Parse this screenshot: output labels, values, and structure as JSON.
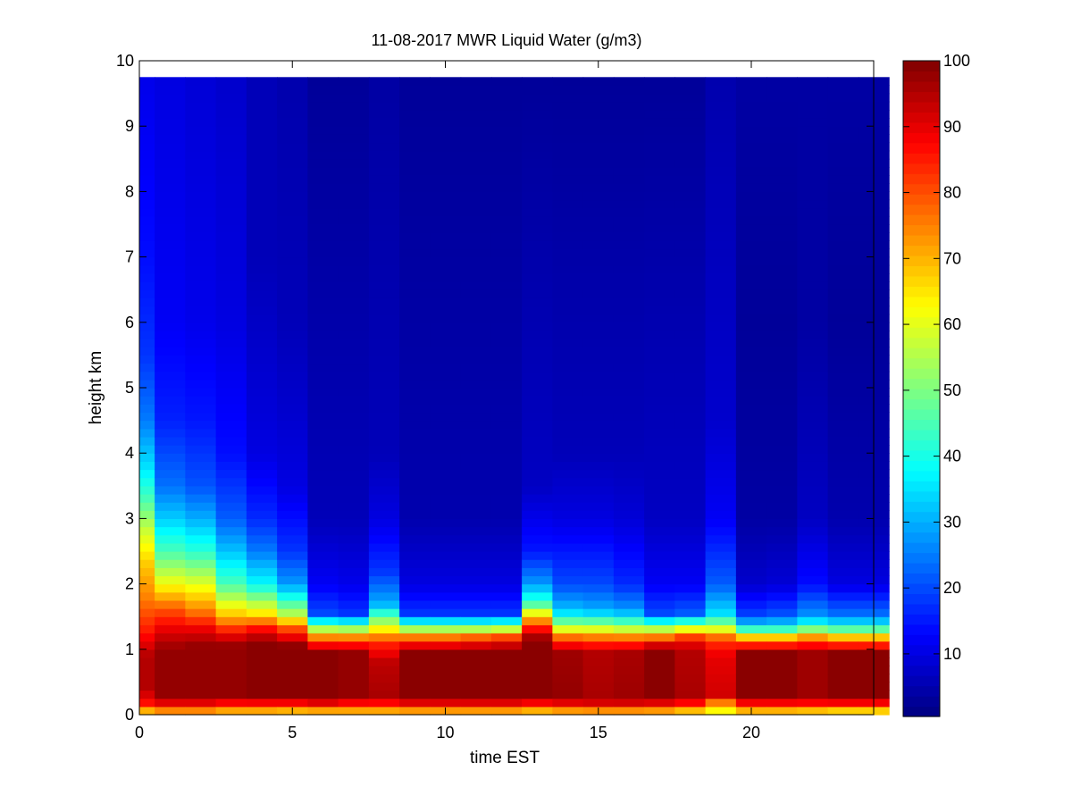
{
  "chart_data": {
    "type": "heatmap",
    "title": "11-08-2017 MWR Liquid Water (g/m3)",
    "xlabel": "time EST",
    "ylabel": "height km",
    "xlim": [
      0,
      24
    ],
    "ylim": [
      0,
      10
    ],
    "x_ticks": [
      0,
      5,
      10,
      15,
      20
    ],
    "y_ticks": [
      0,
      1,
      2,
      3,
      4,
      5,
      6,
      7,
      8,
      9,
      10
    ],
    "colorbar": {
      "range": [
        0.5,
        100
      ],
      "ticks": [
        10,
        20,
        30,
        40,
        50,
        60,
        70,
        80,
        90,
        100
      ],
      "colormap": "jet"
    },
    "grid": false,
    "data_extent": {
      "x": [
        0,
        23.5
      ],
      "y": [
        0,
        9.75
      ]
    },
    "time_columns": [
      0,
      0.5,
      1.5,
      2.5,
      3.5,
      4.5,
      5.5,
      6.5,
      7.5,
      8.5,
      9.5,
      10.5,
      11.5,
      12.5,
      13.5,
      14.5,
      15.5,
      16.5,
      17.5,
      18.5,
      19.5,
      20.5,
      21.5,
      22.5,
      23.5
    ],
    "profiles": [
      [
        [
          0,
          60
        ],
        [
          0.15,
          85
        ],
        [
          0.4,
          95
        ],
        [
          0.9,
          95
        ],
        [
          1.3,
          85
        ],
        [
          1.8,
          75
        ],
        [
          2.3,
          68
        ],
        [
          2.8,
          58
        ],
        [
          3.3,
          45
        ],
        [
          3.8,
          35
        ],
        [
          4.5,
          25
        ],
        [
          5.5,
          18
        ],
        [
          7,
          14
        ],
        [
          9.75,
          11
        ]
      ],
      [
        [
          0,
          65
        ],
        [
          0.15,
          88
        ],
        [
          0.3,
          98
        ],
        [
          1,
          98
        ],
        [
          1.3,
          90
        ],
        [
          1.6,
          80
        ],
        [
          2,
          62
        ],
        [
          2.5,
          45
        ],
        [
          3,
          33
        ],
        [
          3.5,
          24
        ],
        [
          4.5,
          16
        ],
        [
          6,
          12
        ],
        [
          9.75,
          10
        ]
      ],
      [
        [
          0,
          65
        ],
        [
          0.15,
          88
        ],
        [
          0.3,
          98
        ],
        [
          1.05,
          98
        ],
        [
          1.3,
          90
        ],
        [
          1.6,
          75
        ],
        [
          2,
          60
        ],
        [
          2.5,
          42
        ],
        [
          3,
          30
        ],
        [
          3.5,
          21
        ],
        [
          4.5,
          15
        ],
        [
          6,
          11
        ],
        [
          9.75,
          9
        ]
      ],
      [
        [
          0,
          62
        ],
        [
          0.15,
          85
        ],
        [
          0.3,
          98
        ],
        [
          1.05,
          98
        ],
        [
          1.25,
          88
        ],
        [
          1.5,
          70
        ],
        [
          2,
          45
        ],
        [
          2.5,
          32
        ],
        [
          3,
          22
        ],
        [
          4,
          14
        ],
        [
          6,
          10
        ],
        [
          9.75,
          8
        ]
      ],
      [
        [
          0,
          62
        ],
        [
          0.15,
          85
        ],
        [
          0.3,
          99
        ],
        [
          1.1,
          99
        ],
        [
          1.3,
          88
        ],
        [
          1.55,
          65
        ],
        [
          2,
          38
        ],
        [
          2.5,
          25
        ],
        [
          3,
          17
        ],
        [
          4,
          10
        ],
        [
          7,
          6
        ],
        [
          9.75,
          6
        ]
      ],
      [
        [
          0,
          60
        ],
        [
          0.15,
          85
        ],
        [
          0.3,
          99
        ],
        [
          1.05,
          99
        ],
        [
          1.3,
          82
        ],
        [
          1.55,
          55
        ],
        [
          2,
          28
        ],
        [
          2.5,
          18
        ],
        [
          3.5,
          10
        ],
        [
          6,
          6
        ],
        [
          9.75,
          5
        ]
      ],
      [
        [
          0,
          60
        ],
        [
          0.15,
          88
        ],
        [
          0.3,
          99
        ],
        [
          0.95,
          99
        ],
        [
          1.15,
          80
        ],
        [
          1.35,
          50
        ],
        [
          1.55,
          20
        ],
        [
          2,
          12
        ],
        [
          3,
          6
        ],
        [
          9.75,
          3
        ]
      ],
      [
        [
          0,
          62
        ],
        [
          0.15,
          85
        ],
        [
          0.3,
          98
        ],
        [
          0.95,
          98
        ],
        [
          1.15,
          80
        ],
        [
          1.35,
          48
        ],
        [
          1.55,
          18
        ],
        [
          2,
          11
        ],
        [
          3,
          6
        ],
        [
          9.75,
          3
        ]
      ],
      [
        [
          0,
          62
        ],
        [
          0.15,
          85
        ],
        [
          0.3,
          96
        ],
        [
          0.8,
          94
        ],
        [
          1.1,
          84
        ],
        [
          1.35,
          60
        ],
        [
          1.7,
          30
        ],
        [
          2.2,
          18
        ],
        [
          3,
          10
        ],
        [
          4,
          6
        ],
        [
          9.75,
          4
        ]
      ],
      [
        [
          0,
          62
        ],
        [
          0.15,
          88
        ],
        [
          0.3,
          99
        ],
        [
          0.95,
          99
        ],
        [
          1.15,
          82
        ],
        [
          1.35,
          48
        ],
        [
          1.55,
          18
        ],
        [
          2,
          10
        ],
        [
          3,
          5
        ],
        [
          9.75,
          3
        ]
      ],
      [
        [
          0,
          62
        ],
        [
          0.15,
          88
        ],
        [
          0.3,
          99
        ],
        [
          0.95,
          99
        ],
        [
          1.15,
          82
        ],
        [
          1.35,
          48
        ],
        [
          1.55,
          18
        ],
        [
          2,
          10
        ],
        [
          3,
          5
        ],
        [
          9.75,
          3
        ]
      ],
      [
        [
          0,
          62
        ],
        [
          0.15,
          88
        ],
        [
          0.3,
          99
        ],
        [
          0.95,
          99
        ],
        [
          1.15,
          85
        ],
        [
          1.35,
          48
        ],
        [
          1.55,
          18
        ],
        [
          2,
          10
        ],
        [
          3,
          5
        ],
        [
          9.75,
          3
        ]
      ],
      [
        [
          0,
          62
        ],
        [
          0.15,
          88
        ],
        [
          0.3,
          99
        ],
        [
          0.95,
          99
        ],
        [
          1.15,
          88
        ],
        [
          1.35,
          50
        ],
        [
          1.55,
          18
        ],
        [
          2,
          10
        ],
        [
          3,
          5
        ],
        [
          9.75,
          3
        ]
      ],
      [
        [
          0,
          60
        ],
        [
          0.15,
          85
        ],
        [
          0.3,
          99
        ],
        [
          1.15,
          99
        ],
        [
          1.3,
          88
        ],
        [
          1.5,
          68
        ],
        [
          1.7,
          45
        ],
        [
          2,
          28
        ],
        [
          2.5,
          15
        ],
        [
          3.5,
          7
        ],
        [
          9.75,
          3
        ]
      ],
      [
        [
          0,
          62
        ],
        [
          0.15,
          88
        ],
        [
          0.3,
          98
        ],
        [
          0.95,
          97
        ],
        [
          1.15,
          82
        ],
        [
          1.35,
          55
        ],
        [
          1.6,
          32
        ],
        [
          2,
          20
        ],
        [
          3,
          10
        ],
        [
          4,
          6
        ],
        [
          9.75,
          3
        ]
      ],
      [
        [
          0,
          62
        ],
        [
          0.15,
          90
        ],
        [
          0.3,
          96
        ],
        [
          0.95,
          95
        ],
        [
          1.15,
          80
        ],
        [
          1.35,
          55
        ],
        [
          1.6,
          30
        ],
        [
          2,
          20
        ],
        [
          3,
          10
        ],
        [
          4,
          6
        ],
        [
          9.75,
          3
        ]
      ],
      [
        [
          0,
          62
        ],
        [
          0.15,
          90
        ],
        [
          0.3,
          97
        ],
        [
          0.95,
          96
        ],
        [
          1.15,
          80
        ],
        [
          1.35,
          52
        ],
        [
          1.6,
          28
        ],
        [
          2,
          17
        ],
        [
          3,
          9
        ],
        [
          4,
          6
        ],
        [
          9.75,
          3
        ]
      ],
      [
        [
          0,
          62
        ],
        [
          0.15,
          88
        ],
        [
          0.3,
          99
        ],
        [
          1,
          99
        ],
        [
          1.15,
          82
        ],
        [
          1.35,
          50
        ],
        [
          1.55,
          20
        ],
        [
          2,
          12
        ],
        [
          3,
          7
        ],
        [
          9.75,
          3
        ]
      ],
      [
        [
          0,
          58
        ],
        [
          0.15,
          85
        ],
        [
          0.3,
          96
        ],
        [
          0.95,
          95
        ],
        [
          1.15,
          88
        ],
        [
          1.35,
          55
        ],
        [
          1.55,
          22
        ],
        [
          2,
          12
        ],
        [
          3,
          7
        ],
        [
          9.75,
          3
        ]
      ],
      [
        [
          0,
          58
        ],
        [
          0.15,
          70
        ],
        [
          0.3,
          92
        ],
        [
          0.9,
          90
        ],
        [
          1.15,
          82
        ],
        [
          1.35,
          55
        ],
        [
          1.55,
          35
        ],
        [
          2,
          22
        ],
        [
          3,
          12
        ],
        [
          4.5,
          8
        ],
        [
          9.75,
          5
        ]
      ],
      [
        [
          0,
          60
        ],
        [
          0.15,
          85
        ],
        [
          0.3,
          99
        ],
        [
          0.95,
          99
        ],
        [
          1.15,
          75
        ],
        [
          1.3,
          45
        ],
        [
          1.5,
          20
        ],
        [
          2,
          8
        ],
        [
          3,
          4
        ],
        [
          6,
          3
        ],
        [
          9.75,
          4
        ]
      ],
      [
        [
          0,
          60
        ],
        [
          0.15,
          85
        ],
        [
          0.3,
          99
        ],
        [
          0.95,
          99
        ],
        [
          1.15,
          75
        ],
        [
          1.3,
          45
        ],
        [
          1.5,
          22
        ],
        [
          2,
          9
        ],
        [
          3,
          4
        ],
        [
          6,
          3
        ],
        [
          9.75,
          4
        ]
      ],
      [
        [
          0,
          58
        ],
        [
          0.15,
          85
        ],
        [
          0.3,
          97
        ],
        [
          0.95,
          97
        ],
        [
          1.15,
          80
        ],
        [
          1.3,
          52
        ],
        [
          1.5,
          28
        ],
        [
          2,
          14
        ],
        [
          3,
          7
        ],
        [
          6,
          4
        ],
        [
          9.75,
          4
        ]
      ],
      [
        [
          0,
          55
        ],
        [
          0.15,
          85
        ],
        [
          0.3,
          99
        ],
        [
          0.95,
          99
        ],
        [
          1.15,
          75
        ],
        [
          1.3,
          48
        ],
        [
          1.5,
          25
        ],
        [
          2,
          10
        ],
        [
          3,
          5
        ],
        [
          6,
          3
        ],
        [
          9.75,
          4
        ]
      ],
      [
        [
          0,
          55
        ],
        [
          0.15,
          85
        ],
        [
          0.3,
          99
        ],
        [
          0.95,
          99
        ],
        [
          1.15,
          75
        ],
        [
          1.3,
          48
        ],
        [
          1.5,
          25
        ],
        [
          2,
          10
        ],
        [
          3,
          5
        ],
        [
          6,
          3
        ],
        [
          9.75,
          4
        ]
      ]
    ]
  }
}
